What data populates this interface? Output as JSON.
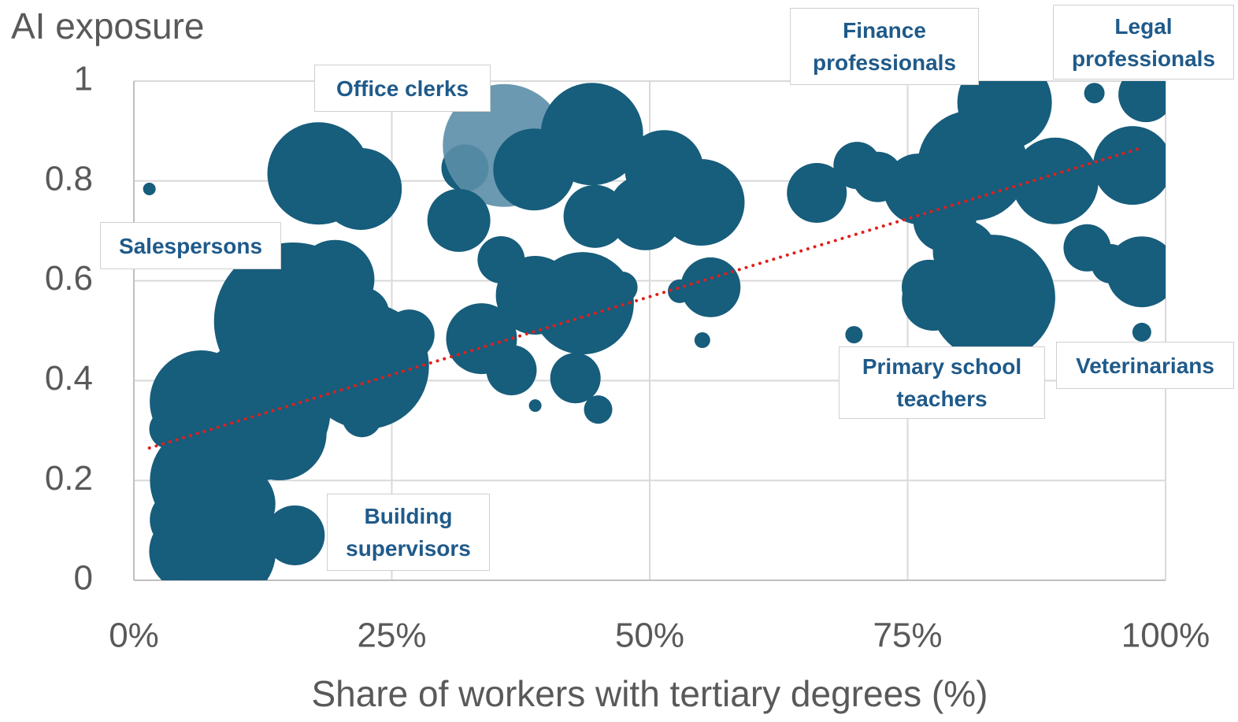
{
  "chart_data": {
    "type": "bubble",
    "ylabel": "AI exposure",
    "xlabel": "Share of workers with tertiary degrees (%)",
    "xlim": [
      0,
      100
    ],
    "ylim": [
      0,
      1
    ],
    "xticks": [
      {
        "value": 0,
        "label": "0%"
      },
      {
        "value": 25,
        "label": "25%"
      },
      {
        "value": 50,
        "label": "50%"
      },
      {
        "value": 75,
        "label": "75%"
      },
      {
        "value": 100,
        "label": "100%"
      }
    ],
    "yticks": [
      0,
      0.2,
      0.4,
      0.6,
      0.8,
      1
    ],
    "grid": true,
    "color": "#175d7c",
    "highlight": {
      "index": 4,
      "color": "#5b8ea8"
    },
    "x": [
      1.5,
      17.9,
      22.0,
      32.1,
      35.9,
      38.8,
      44.4,
      31.5,
      44.7,
      49.6,
      51.4,
      55.0,
      35.6,
      38.9,
      43.5,
      33.7,
      36.6,
      42.8,
      38.9,
      45.0,
      47.3,
      52.9,
      55.9,
      55.1,
      66.2,
      70.1,
      72.1,
      76.1,
      81.3,
      84.4,
      89.3,
      96.8,
      98.1,
      93.1,
      92.4,
      97.7,
      94.7,
      97.7,
      69.8,
      77.1,
      80.5,
      77.5,
      83.2,
      78.6,
      15.4,
      19.5,
      22.1,
      22.5,
      26.7,
      19.8,
      22.1,
      6.5,
      12.2,
      14.1,
      3.4,
      6.9,
      9.9,
      5.3,
      8.8,
      15.6,
      4.6
    ],
    "y": [
      0.784,
      0.815,
      0.784,
      0.826,
      0.871,
      0.823,
      0.894,
      0.721,
      0.729,
      0.737,
      0.823,
      0.757,
      0.642,
      0.571,
      0.555,
      0.484,
      0.421,
      0.405,
      0.35,
      0.342,
      0.587,
      0.579,
      0.587,
      0.481,
      0.776,
      0.831,
      0.808,
      0.784,
      0.831,
      0.957,
      0.8,
      0.831,
      0.973,
      0.976,
      0.666,
      0.618,
      0.634,
      0.497,
      0.492,
      0.587,
      0.658,
      0.563,
      0.566,
      0.721,
      0.519,
      0.603,
      0.532,
      0.429,
      0.492,
      0.421,
      0.326,
      0.358,
      0.342,
      0.295,
      0.303,
      0.2,
      0.153,
      0.058,
      0.058,
      0.09,
      0.121
    ],
    "sizes": [
      0.64,
      42.25,
      27.04,
      9,
      60.84,
      27.04,
      42.25,
      16,
      16,
      23.04,
      25,
      30.25,
      9,
      25,
      42.25,
      20.25,
      10.24,
      10.24,
      0.64,
      3.24,
      4,
      2.25,
      14.44,
      1,
      14.44,
      9,
      10.24,
      20.25,
      49,
      36,
      30.25,
      25,
      12.25,
      1.69,
      9,
      20.25,
      6.25,
      1.44,
      1.21,
      12.25,
      16,
      16,
      64,
      16,
      100,
      25,
      12.25,
      64,
      10.24,
      25,
      6.25,
      42.25,
      81,
      36,
      6.25,
      49,
      25,
      25,
      42.25,
      14.44,
      16
    ],
    "trendline": {
      "x": [
        1.5,
        97.5
      ],
      "y": [
        0.265,
        0.865
      ],
      "color": "#e0201b"
    },
    "annotations": [
      "Office clerks",
      "Finance professionals",
      "Legal professionals",
      "Salespersons",
      "Primary school teachers",
      "Veterinarians",
      "Building supervisors"
    ]
  }
}
